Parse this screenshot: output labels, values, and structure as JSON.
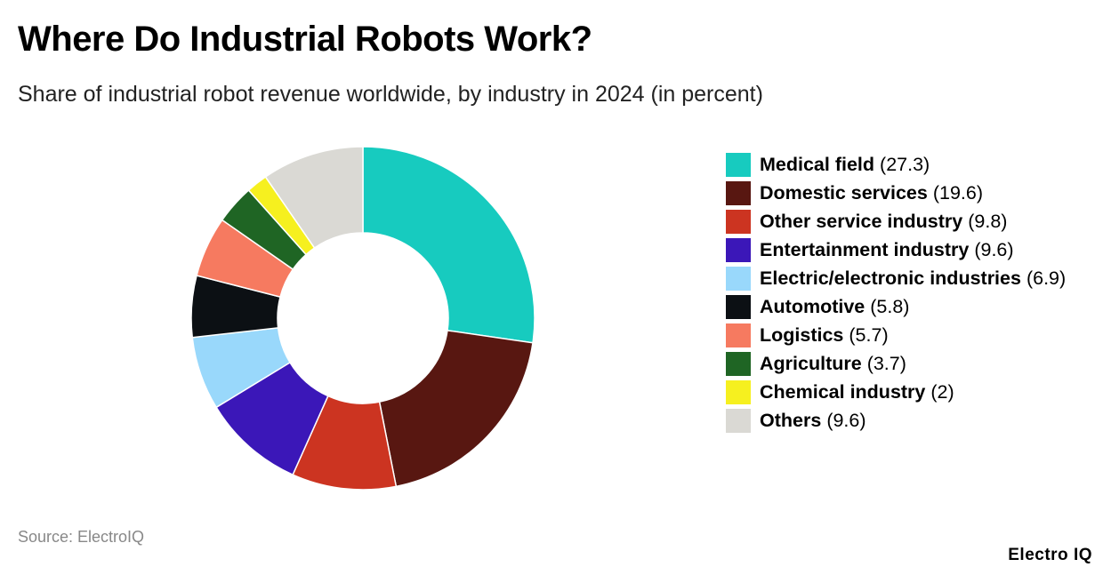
{
  "title": "Where Do Industrial Robots Work?",
  "subtitle": "Share of industrial robot revenue worldwide, by industry in 2024 (in percent)",
  "source": "Source: ElectroIQ",
  "brand": "Electro IQ",
  "chart_data": {
    "type": "pie",
    "donut": true,
    "legend_position": "right",
    "categories": [
      "Medical field",
      "Domestic services",
      "Other service industry",
      "Entertainment industry",
      "Electric/electronic industries",
      "Automotive",
      "Logistics",
      "Agriculture",
      "Chemical industry",
      "Others"
    ],
    "values": [
      27.3,
      19.6,
      9.8,
      9.6,
      6.9,
      5.8,
      5.7,
      3.7,
      2,
      9.6
    ],
    "value_labels": [
      "(27.3)",
      "(19.6)",
      "(9.8)",
      "(9.6)",
      "(6.9)",
      "(5.8)",
      "(5.7)",
      "(3.7)",
      "(2)",
      "(9.6)"
    ],
    "colors": [
      "#17cbbf",
      "#581711",
      "#cc3421",
      "#3b17b8",
      "#99d8fb",
      "#0c1014",
      "#f67a60",
      "#1f6524",
      "#f6f01f",
      "#dad9d4"
    ]
  }
}
